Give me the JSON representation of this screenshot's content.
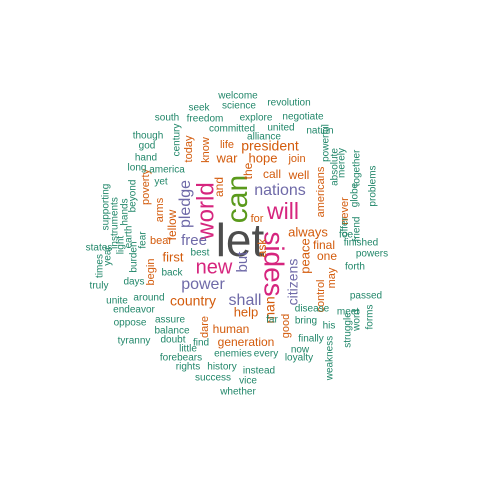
{
  "chart_data": {
    "type": "wordcloud",
    "palette": {
      "gray": "#4d4d4d",
      "magenta": "#d6257e",
      "green": "#5a9a1c",
      "purple": "#6f6aa8",
      "orange": "#d35b0c",
      "teal": "#22876a"
    },
    "words": [
      {
        "text": "let",
        "color": "gray",
        "rotate": 0
      },
      {
        "text": "can",
        "color": "green",
        "rotate": -90
      },
      {
        "text": "sides",
        "color": "magenta",
        "rotate": 90
      },
      {
        "text": "world",
        "color": "magenta",
        "rotate": -90
      },
      {
        "text": "new",
        "color": "magenta",
        "rotate": 0
      },
      {
        "text": "will",
        "color": "magenta",
        "rotate": 0
      },
      {
        "text": "nations",
        "color": "purple",
        "rotate": 0
      },
      {
        "text": "pledge",
        "color": "purple",
        "rotate": -90
      },
      {
        "text": "power",
        "color": "purple",
        "rotate": 0
      },
      {
        "text": "shall",
        "color": "purple",
        "rotate": 0
      },
      {
        "text": "but",
        "color": "purple",
        "rotate": -90
      },
      {
        "text": "free",
        "color": "purple",
        "rotate": 0
      },
      {
        "text": "citizens",
        "color": "purple",
        "rotate": -90
      },
      {
        "text": "man",
        "color": "orange",
        "rotate": -90
      },
      {
        "text": "president",
        "color": "orange",
        "rotate": 0
      },
      {
        "text": "hope",
        "color": "orange",
        "rotate": 0
      },
      {
        "text": "war",
        "color": "orange",
        "rotate": 0
      },
      {
        "text": "always",
        "color": "orange",
        "rotate": 0
      },
      {
        "text": "peace",
        "color": "orange",
        "rotate": -90
      },
      {
        "text": "country",
        "color": "orange",
        "rotate": 0
      },
      {
        "text": "first",
        "color": "orange",
        "rotate": 0
      },
      {
        "text": "call",
        "color": "orange",
        "rotate": 0
      },
      {
        "text": "help",
        "color": "orange",
        "rotate": 0
      },
      {
        "text": "fellow",
        "color": "orange",
        "rotate": -90
      },
      {
        "text": "and",
        "color": "orange",
        "rotate": -90
      },
      {
        "text": "the",
        "color": "orange",
        "rotate": -90
      },
      {
        "text": "generation",
        "color": "orange",
        "rotate": 0
      },
      {
        "text": "human",
        "color": "orange",
        "rotate": 0
      },
      {
        "text": "ask",
        "color": "orange",
        "rotate": -90
      },
      {
        "text": "one",
        "color": "orange",
        "rotate": 0
      },
      {
        "text": "may",
        "color": "orange",
        "rotate": -90
      },
      {
        "text": "final",
        "color": "orange",
        "rotate": 0
      },
      {
        "text": "americans",
        "color": "orange",
        "rotate": -90
      },
      {
        "text": "well",
        "color": "orange",
        "rotate": 0
      },
      {
        "text": "bear",
        "color": "orange",
        "rotate": 0
      },
      {
        "text": "arms",
        "color": "orange",
        "rotate": -90
      },
      {
        "text": "begin",
        "color": "orange",
        "rotate": -90
      },
      {
        "text": "today",
        "color": "orange",
        "rotate": -90
      },
      {
        "text": "know",
        "color": "orange",
        "rotate": -90
      },
      {
        "text": "life",
        "color": "orange",
        "rotate": 0
      },
      {
        "text": "join",
        "color": "orange",
        "rotate": 0
      },
      {
        "text": "poverty",
        "color": "orange",
        "rotate": -90
      },
      {
        "text": "good",
        "color": "orange",
        "rotate": -90
      },
      {
        "text": "dare",
        "color": "orange",
        "rotate": -90
      },
      {
        "text": "control",
        "color": "orange",
        "rotate": -90
      },
      {
        "text": "never",
        "color": "orange",
        "rotate": -90
      },
      {
        "text": "for",
        "color": "orange",
        "rotate": 0
      },
      {
        "text": "welcome",
        "color": "teal",
        "rotate": 0
      },
      {
        "text": "seek",
        "color": "teal",
        "rotate": 0
      },
      {
        "text": "science",
        "color": "teal",
        "rotate": 0
      },
      {
        "text": "revolution",
        "color": "teal",
        "rotate": 0
      },
      {
        "text": "south",
        "color": "teal",
        "rotate": 0
      },
      {
        "text": "freedom",
        "color": "teal",
        "rotate": 0
      },
      {
        "text": "explore",
        "color": "teal",
        "rotate": 0
      },
      {
        "text": "negotiate",
        "color": "teal",
        "rotate": 0
      },
      {
        "text": "though",
        "color": "teal",
        "rotate": 0
      },
      {
        "text": "committed",
        "color": "teal",
        "rotate": 0
      },
      {
        "text": "united",
        "color": "teal",
        "rotate": 0
      },
      {
        "text": "nation",
        "color": "teal",
        "rotate": 0
      },
      {
        "text": "alliance",
        "color": "teal",
        "rotate": 0
      },
      {
        "text": "god",
        "color": "teal",
        "rotate": 0
      },
      {
        "text": "century",
        "color": "teal",
        "rotate": -90
      },
      {
        "text": "powerful",
        "color": "teal",
        "rotate": -90
      },
      {
        "text": "absolute",
        "color": "teal",
        "rotate": -90
      },
      {
        "text": "hand",
        "color": "teal",
        "rotate": 0
      },
      {
        "text": "long",
        "color": "teal",
        "rotate": 0
      },
      {
        "text": "america",
        "color": "teal",
        "rotate": 0
      },
      {
        "text": "merely",
        "color": "teal",
        "rotate": -90
      },
      {
        "text": "globe",
        "color": "teal",
        "rotate": -90
      },
      {
        "text": "together",
        "color": "teal",
        "rotate": -90
      },
      {
        "text": "yet",
        "color": "teal",
        "rotate": 0
      },
      {
        "text": "problems",
        "color": "teal",
        "rotate": -90
      },
      {
        "text": "offer",
        "color": "teal",
        "rotate": -90
      },
      {
        "text": "friend",
        "color": "teal",
        "rotate": -90
      },
      {
        "text": "supporting",
        "color": "teal",
        "rotate": -90
      },
      {
        "text": "instruments",
        "color": "teal",
        "rotate": -90
      },
      {
        "text": "hands",
        "color": "teal",
        "rotate": -90
      },
      {
        "text": "earth",
        "color": "teal",
        "rotate": -90
      },
      {
        "text": "beyond",
        "color": "teal",
        "rotate": -90
      },
      {
        "text": "light",
        "color": "teal",
        "rotate": -90
      },
      {
        "text": "burden",
        "color": "teal",
        "rotate": -90
      },
      {
        "text": "fear",
        "color": "teal",
        "rotate": -90
      },
      {
        "text": "best",
        "color": "teal",
        "rotate": 0
      },
      {
        "text": "states",
        "color": "teal",
        "rotate": 0
      },
      {
        "text": "times",
        "color": "teal",
        "rotate": -90
      },
      {
        "text": "year",
        "color": "teal",
        "rotate": -90
      },
      {
        "text": "truly",
        "color": "teal",
        "rotate": 0
      },
      {
        "text": "days",
        "color": "teal",
        "rotate": 0
      },
      {
        "text": "back",
        "color": "teal",
        "rotate": 0
      },
      {
        "text": "finished",
        "color": "teal",
        "rotate": 0
      },
      {
        "text": "powers",
        "color": "teal",
        "rotate": 0
      },
      {
        "text": "forth",
        "color": "teal",
        "rotate": 0
      },
      {
        "text": "foe",
        "color": "teal",
        "rotate": 0
      },
      {
        "text": "unite",
        "color": "teal",
        "rotate": 0
      },
      {
        "text": "around",
        "color": "teal",
        "rotate": 0
      },
      {
        "text": "passed",
        "color": "teal",
        "rotate": 0
      },
      {
        "text": "endeavor",
        "color": "teal",
        "rotate": 0
      },
      {
        "text": "disease",
        "color": "teal",
        "rotate": 0
      },
      {
        "text": "meet",
        "color": "teal",
        "rotate": 0
      },
      {
        "text": "oppose",
        "color": "teal",
        "rotate": 0
      },
      {
        "text": "assure",
        "color": "teal",
        "rotate": 0
      },
      {
        "text": "far",
        "color": "teal",
        "rotate": 0
      },
      {
        "text": "bring",
        "color": "teal",
        "rotate": 0
      },
      {
        "text": "his",
        "color": "teal",
        "rotate": 0
      },
      {
        "text": "forms",
        "color": "teal",
        "rotate": -90
      },
      {
        "text": "word",
        "color": "teal",
        "rotate": -90
      },
      {
        "text": "struggle",
        "color": "teal",
        "rotate": -90
      },
      {
        "text": "balance",
        "color": "teal",
        "rotate": 0
      },
      {
        "text": "tyranny",
        "color": "teal",
        "rotate": 0
      },
      {
        "text": "doubt",
        "color": "teal",
        "rotate": 0
      },
      {
        "text": "find",
        "color": "teal",
        "rotate": 0
      },
      {
        "text": "finally",
        "color": "teal",
        "rotate": 0
      },
      {
        "text": "little",
        "color": "teal",
        "rotate": 0
      },
      {
        "text": "now",
        "color": "teal",
        "rotate": 0
      },
      {
        "text": "forebears",
        "color": "teal",
        "rotate": 0
      },
      {
        "text": "enemies",
        "color": "teal",
        "rotate": 0
      },
      {
        "text": "every",
        "color": "teal",
        "rotate": 0
      },
      {
        "text": "loyalty",
        "color": "teal",
        "rotate": 0
      },
      {
        "text": "weakness",
        "color": "teal",
        "rotate": -90
      },
      {
        "text": "rights",
        "color": "teal",
        "rotate": 0
      },
      {
        "text": "history",
        "color": "teal",
        "rotate": 0
      },
      {
        "text": "success",
        "color": "teal",
        "rotate": 0
      },
      {
        "text": "instead",
        "color": "teal",
        "rotate": 0
      },
      {
        "text": "vice",
        "color": "teal",
        "rotate": 0
      },
      {
        "text": "whether",
        "color": "teal",
        "rotate": 0
      }
    ]
  }
}
